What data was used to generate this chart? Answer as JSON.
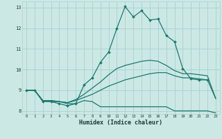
{
  "bg_color": "#cce8e5",
  "grid_color": "#aad4d0",
  "line_color": "#1a7a6e",
  "xlabel": "Humidex (Indice chaleur)",
  "xlim": [
    -0.5,
    23.5
  ],
  "ylim": [
    7.85,
    13.3
  ],
  "yticks": [
    8,
    9,
    10,
    11,
    12,
    13
  ],
  "xticks": [
    0,
    1,
    2,
    3,
    4,
    5,
    6,
    7,
    8,
    9,
    10,
    11,
    12,
    13,
    14,
    15,
    16,
    17,
    18,
    19,
    20,
    21,
    22,
    23
  ],
  "series": [
    {
      "x": [
        0,
        1,
        2,
        3,
        4,
        5,
        6,
        7,
        8,
        9,
        10,
        11,
        12,
        13,
        14,
        15,
        16,
        17,
        18,
        19,
        20,
        21,
        22,
        23
      ],
      "y": [
        9.0,
        9.0,
        8.5,
        8.45,
        8.45,
        8.35,
        8.35,
        8.5,
        8.45,
        8.2,
        8.2,
        8.2,
        8.2,
        8.2,
        8.2,
        8.2,
        8.2,
        8.2,
        8.0,
        8.0,
        8.0,
        8.0,
        8.0,
        7.9
      ],
      "marker": false
    },
    {
      "x": [
        0,
        1,
        2,
        3,
        4,
        5,
        6,
        7,
        8,
        9,
        10,
        11,
        12,
        13,
        14,
        15,
        16,
        17,
        18,
        19,
        20,
        21,
        22,
        23
      ],
      "y": [
        9.0,
        9.0,
        8.5,
        8.5,
        8.45,
        8.4,
        8.5,
        8.65,
        8.8,
        9.0,
        9.2,
        9.35,
        9.5,
        9.6,
        9.7,
        9.8,
        9.85,
        9.85,
        9.7,
        9.6,
        9.6,
        9.55,
        9.5,
        8.6
      ],
      "marker": false
    },
    {
      "x": [
        0,
        1,
        2,
        3,
        4,
        5,
        6,
        7,
        8,
        9,
        10,
        11,
        12,
        13,
        14,
        15,
        16,
        17,
        18,
        19,
        20,
        21,
        22,
        23
      ],
      "y": [
        9.0,
        9.0,
        8.5,
        8.5,
        8.45,
        8.4,
        8.55,
        8.8,
        9.1,
        9.4,
        9.75,
        10.05,
        10.2,
        10.3,
        10.4,
        10.45,
        10.4,
        10.2,
        9.95,
        9.8,
        9.8,
        9.75,
        9.7,
        8.6
      ],
      "marker": false
    },
    {
      "x": [
        0,
        1,
        2,
        3,
        4,
        5,
        6,
        7,
        8,
        9,
        10,
        11,
        12,
        13,
        14,
        15,
        16,
        17,
        18,
        19,
        20,
        21,
        22
      ],
      "y": [
        9.0,
        9.0,
        8.45,
        8.45,
        8.35,
        8.25,
        8.35,
        9.25,
        9.6,
        10.35,
        10.85,
        12.0,
        13.05,
        12.55,
        12.85,
        12.4,
        12.45,
        11.65,
        11.35,
        10.05,
        9.55,
        9.5,
        9.5
      ],
      "marker": true
    }
  ]
}
